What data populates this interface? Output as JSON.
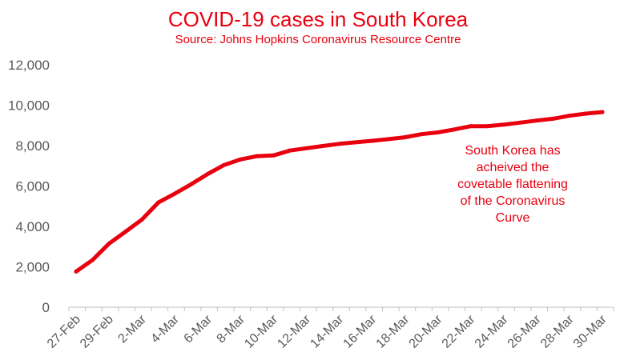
{
  "chart_data": {
    "type": "line",
    "title": "COVID-19 cases in South Korea",
    "subtitle": "Source: Johns Hopkins Coronavirus Resource Centre",
    "xlabel": "",
    "ylabel": "",
    "ylim": [
      0,
      12000
    ],
    "yticks": [
      "0",
      "2,000",
      "4,000",
      "6,000",
      "8,000",
      "10,000",
      "12,000"
    ],
    "x_tick_labels": [
      "27-Feb",
      "29-Feb",
      "2-Mar",
      "4-Mar",
      "6-Mar",
      "8-Mar",
      "10-Mar",
      "12-Mar",
      "14-Mar",
      "16-Mar",
      "18-Mar",
      "20-Mar",
      "22-Mar",
      "24-Mar",
      "26-Mar",
      "28-Mar",
      "30-Mar"
    ],
    "x": [
      "27-Feb",
      "28-Feb",
      "29-Feb",
      "1-Mar",
      "2-Mar",
      "3-Mar",
      "4-Mar",
      "5-Mar",
      "6-Mar",
      "7-Mar",
      "8-Mar",
      "9-Mar",
      "10-Mar",
      "11-Mar",
      "12-Mar",
      "13-Mar",
      "14-Mar",
      "15-Mar",
      "16-Mar",
      "17-Mar",
      "18-Mar",
      "19-Mar",
      "20-Mar",
      "21-Mar",
      "22-Mar",
      "23-Mar",
      "24-Mar",
      "25-Mar",
      "26-Mar",
      "27-Mar",
      "28-Mar",
      "29-Mar",
      "30-Mar"
    ],
    "series": [
      {
        "values": [
          1766,
          2337,
          3150,
          3736,
          4335,
          5186,
          5621,
          6088,
          6593,
          7041,
          7314,
          7478,
          7513,
          7755,
          7869,
          7979,
          8086,
          8162,
          8236,
          8320,
          8413,
          8565,
          8652,
          8799,
          8961,
          8961,
          9037,
          9137,
          9241,
          9332,
          9478,
          9583,
          9661
        ]
      }
    ],
    "grid": false,
    "legend": "none",
    "annotation": "South Korea has acheived the covetable flattening of the Coronavirus Curve",
    "annotation_lines": [
      "South Korea has",
      "acheived the",
      "covetable flattening",
      "of the Coronavirus",
      "Curve"
    ],
    "colors": {
      "line": "#e8000f",
      "text": "#e8000f",
      "axis": "#bfbfbf",
      "tick": "#595959"
    }
  }
}
